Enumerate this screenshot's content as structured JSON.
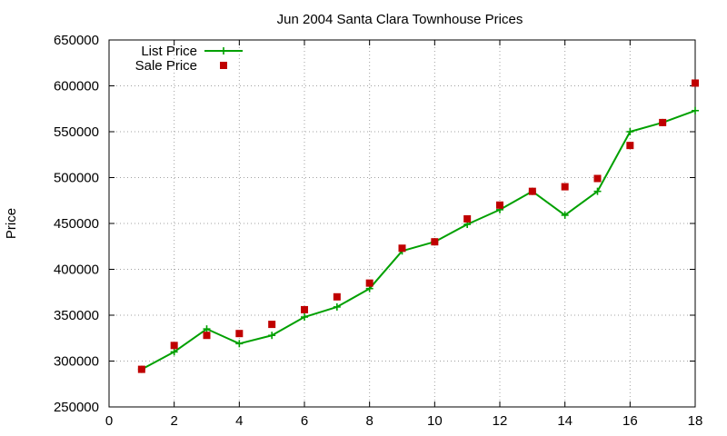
{
  "chart_data": {
    "type": "line",
    "title": "Jun 2004 Santa Clara Townhouse Prices",
    "xlabel": "",
    "ylabel": "Price",
    "xlim": [
      0,
      18
    ],
    "ylim": [
      250000,
      650000
    ],
    "x_ticks": [
      0,
      2,
      4,
      6,
      8,
      10,
      12,
      14,
      16,
      18
    ],
    "y_ticks": [
      250000,
      300000,
      350000,
      400000,
      450000,
      500000,
      550000,
      600000,
      650000
    ],
    "grid": true,
    "legend_position": "top-left",
    "series": [
      {
        "name": "List Price",
        "style": "lines+points",
        "marker": "plus",
        "color": "#00a000",
        "x": [
          1,
          2,
          3,
          4,
          5,
          6,
          7,
          8,
          9,
          10,
          11,
          12,
          13,
          14,
          15,
          16,
          17,
          18
        ],
        "y": [
          291000,
          310000,
          335000,
          319000,
          328000,
          348000,
          359000,
          379000,
          420000,
          430000,
          449000,
          465000,
          485000,
          459000,
          485000,
          550000,
          560000,
          573000
        ]
      },
      {
        "name": "Sale Price",
        "style": "points",
        "marker": "square",
        "color": "#c00000",
        "x": [
          1,
          2,
          3,
          4,
          5,
          6,
          7,
          8,
          9,
          10,
          11,
          12,
          13,
          14,
          15,
          16,
          17,
          18
        ],
        "y": [
          291000,
          317000,
          328000,
          330000,
          340000,
          356000,
          370000,
          385000,
          423000,
          430000,
          455000,
          470000,
          485000,
          490000,
          499000,
          535000,
          560000,
          603000
        ]
      }
    ]
  }
}
